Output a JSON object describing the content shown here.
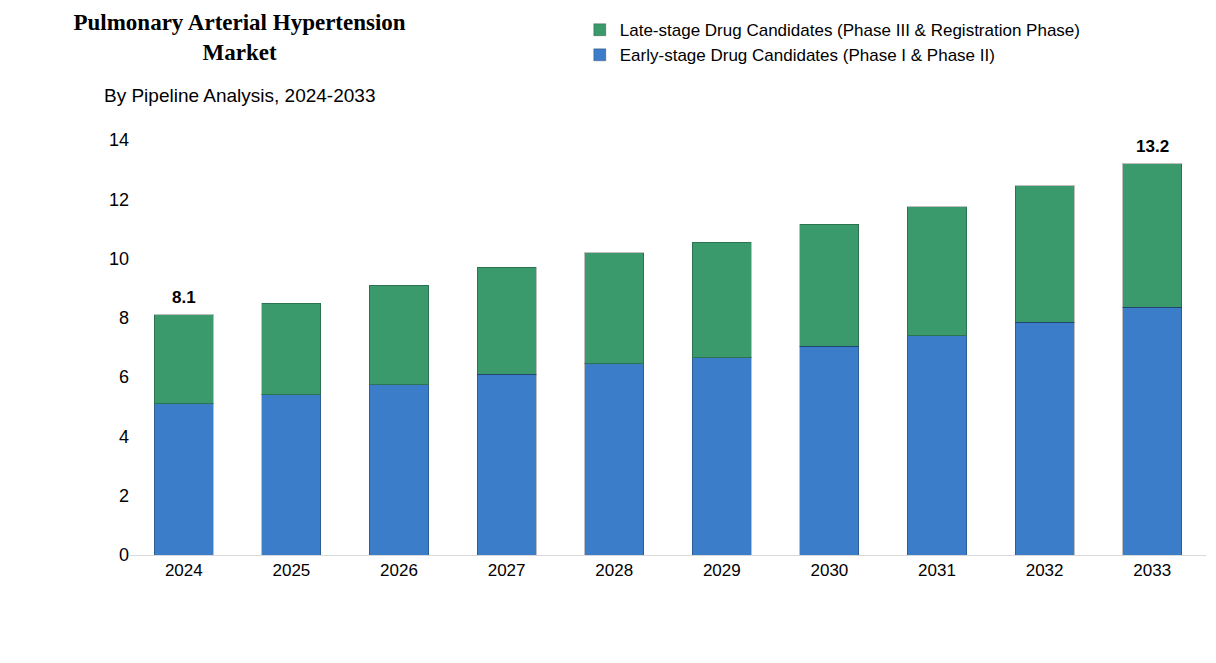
{
  "chart_data": {
    "type": "bar",
    "title": "Pulmonary Arterial Hypertension Market",
    "subtitle": "By Pipeline Analysis, 2024-2033",
    "categories": [
      "2024",
      "2025",
      "2026",
      "2027",
      "2028",
      "2029",
      "2030",
      "2031",
      "2032",
      "2033"
    ],
    "stacked": true,
    "series": [
      {
        "name": "Early-stage Drug Candidates (Phase I & Phase II)",
        "color": "#3b7dc8",
        "values": [
          5.1,
          5.4,
          5.75,
          6.1,
          6.45,
          6.65,
          7.05,
          7.4,
          7.85,
          8.35
        ]
      },
      {
        "name": "Late-stage Drug Candidates (Phase III & Registration Phase)",
        "color": "#3a9a6c",
        "values": [
          3.0,
          3.1,
          3.35,
          3.6,
          3.75,
          3.9,
          4.1,
          4.35,
          4.6,
          4.85
        ]
      }
    ],
    "annotations": [
      {
        "x": "2024",
        "y": 8.1,
        "text": "8.1"
      },
      {
        "x": "2033",
        "y": 13.2,
        "text": "13.2"
      }
    ],
    "ylim": [
      0,
      14
    ],
    "yticks": [
      0,
      2,
      4,
      6,
      8,
      10,
      12,
      14
    ],
    "grid": false,
    "legend": "top"
  }
}
